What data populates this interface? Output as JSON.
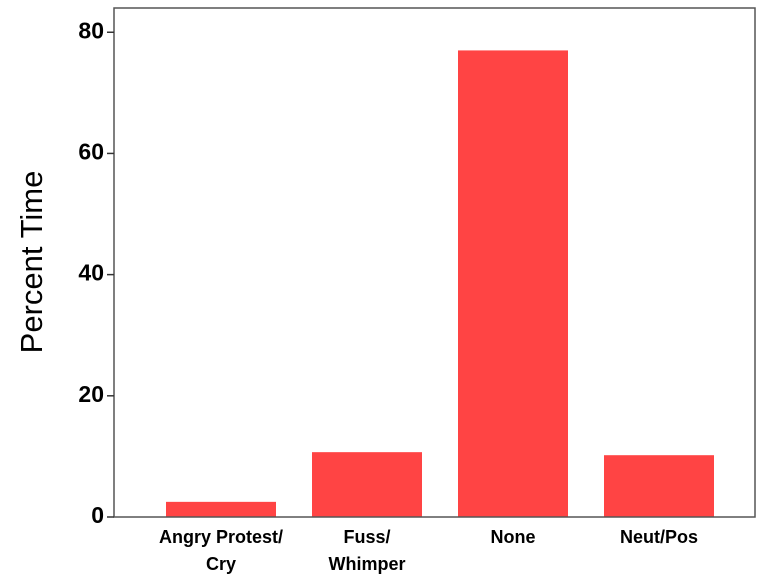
{
  "chart_data": {
    "type": "bar",
    "y_label": "Percent Time",
    "categories": [
      "Angry Protest/\nCry",
      "Fuss/\nWhimper",
      "None",
      "Neut/Pos"
    ],
    "values": [
      2.5,
      10.7,
      77.0,
      10.2
    ],
    "color": "#ff4444",
    "ylim": [
      0,
      84
    ],
    "yticks": [
      0,
      20,
      40,
      60,
      80
    ],
    "grid": false
  }
}
